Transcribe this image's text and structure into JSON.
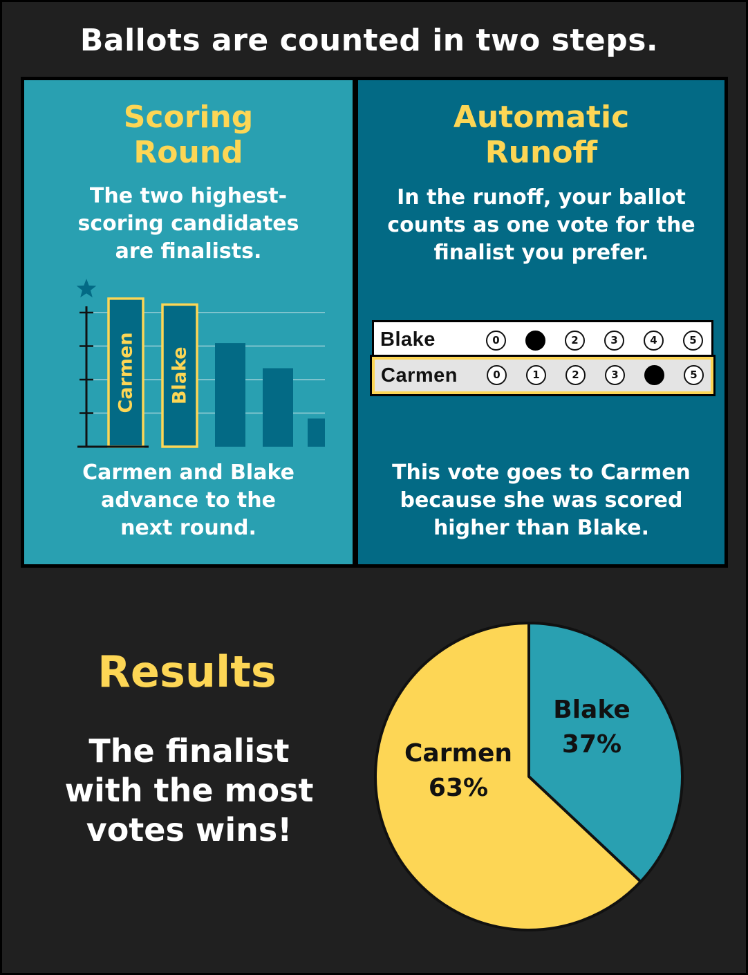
{
  "title": "Ballots are counted in two steps.",
  "scoring": {
    "title_line1": "Scoring",
    "title_line2": "Round",
    "description": [
      "The two highest-",
      "scoring candidates",
      "are finalists."
    ],
    "result": [
      "Carmen and Blake",
      "advance to the",
      "next round."
    ]
  },
  "runoff": {
    "title_line1": "Automatic",
    "title_line2": "Runoff",
    "description": [
      "In the runoff, your ballot",
      "counts as one vote for the",
      "finalist you prefer."
    ],
    "result": [
      "This vote goes to Carmen",
      "because she was scored",
      "higher than Blake."
    ]
  },
  "ballot": {
    "scale": [
      "0",
      "1",
      "2",
      "3",
      "4",
      "5"
    ],
    "rows": [
      {
        "name": "Blake",
        "selected": 1
      },
      {
        "name": "Carmen",
        "selected": 4
      }
    ]
  },
  "results": {
    "title": "Results",
    "text": [
      "The finalist",
      "with the most",
      "votes wins!"
    ]
  },
  "colors": {
    "yellow": "#fdd655",
    "teal": "#29a0b1",
    "dark_teal": "#036a85",
    "background": "#202020"
  },
  "chart_data": [
    {
      "type": "bar",
      "categories": [
        "Carmen",
        "Blake",
        "",
        "",
        ""
      ],
      "values": [
        100,
        96,
        70,
        53,
        19
      ],
      "highlighted": [
        "Carmen",
        "Blake"
      ],
      "marker": "star",
      "ylim": [
        0,
        106
      ]
    },
    {
      "type": "pie",
      "labels": [
        "Blake",
        "Carmen"
      ],
      "values": [
        37,
        63
      ],
      "value_labels": [
        "37%",
        "63%"
      ],
      "colors": [
        "#29a0b1",
        "#fdd655"
      ]
    }
  ]
}
